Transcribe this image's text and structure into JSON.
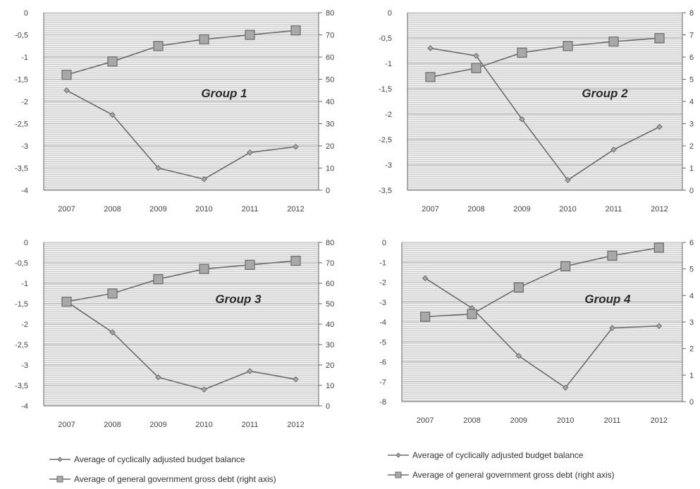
{
  "chart_data": [
    {
      "type": "line",
      "title": "Group 1",
      "categories": [
        "2007",
        "2008",
        "2009",
        "2010",
        "2011",
        "2012"
      ],
      "y_left_ticks": [
        "0",
        "-0,5",
        "-1",
        "-1,5",
        "-2",
        "-2,5",
        "-3",
        "-3,5",
        "-4"
      ],
      "y_left_range": [
        -4,
        0
      ],
      "y_right_ticks": [
        "80",
        "70",
        "60",
        "50",
        "40",
        "30",
        "20",
        "10",
        "0"
      ],
      "y_right_range": [
        0,
        80
      ],
      "series": [
        {
          "key": "balance",
          "axis": "left",
          "marker": "diamond",
          "values": [
            -1.75,
            -2.3,
            -3.5,
            -3.75,
            -3.15,
            -3.02
          ]
        },
        {
          "key": "debt",
          "axis": "right",
          "marker": "square",
          "values": [
            52,
            58,
            65,
            68,
            70,
            72
          ]
        }
      ]
    },
    {
      "type": "line",
      "title": "Group 2",
      "categories": [
        "2007",
        "2008",
        "2009",
        "2010",
        "2011",
        "2012"
      ],
      "y_left_ticks": [
        "0",
        "-0,5",
        "-1",
        "-1,5",
        "-2",
        "-2,5",
        "-3",
        "-3,5"
      ],
      "y_left_range": [
        -3.5,
        0
      ],
      "y_right_ticks": [
        "8",
        "7",
        "6",
        "5",
        "4",
        "3",
        "2",
        "1",
        "0"
      ],
      "y_right_range": [
        0,
        80
      ],
      "series": [
        {
          "key": "balance",
          "axis": "left",
          "marker": "diamond",
          "values": [
            -0.7,
            -0.85,
            -2.1,
            -3.3,
            -2.7,
            -2.25
          ]
        },
        {
          "key": "debt",
          "axis": "right",
          "marker": "square",
          "values": [
            51,
            55,
            62,
            65,
            67,
            68.5
          ]
        }
      ]
    },
    {
      "type": "line",
      "title": "Group 3",
      "categories": [
        "2007",
        "2008",
        "2009",
        "2010",
        "2011",
        "2012"
      ],
      "y_left_ticks": [
        "0",
        "-0,5",
        "-1",
        "-1,5",
        "-2",
        "-2,5",
        "-3",
        "-3,5",
        "-4"
      ],
      "y_left_range": [
        -4,
        0
      ],
      "y_right_ticks": [
        "80",
        "70",
        "60",
        "50",
        "40",
        "30",
        "20",
        "10",
        "0"
      ],
      "y_right_range": [
        0,
        80
      ],
      "series": [
        {
          "key": "balance",
          "axis": "left",
          "marker": "diamond",
          "values": [
            -1.45,
            -2.2,
            -3.3,
            -3.6,
            -3.15,
            -3.35
          ]
        },
        {
          "key": "debt",
          "axis": "right",
          "marker": "square",
          "values": [
            51,
            55,
            62,
            67,
            69,
            71
          ]
        }
      ]
    },
    {
      "type": "line",
      "title": "Group 4",
      "categories": [
        "2007",
        "2008",
        "2009",
        "2010",
        "2011",
        "2012"
      ],
      "y_left_ticks": [
        "0",
        "-1",
        "-2",
        "-3",
        "-4",
        "-5",
        "-6",
        "-7",
        "-8"
      ],
      "y_left_range": [
        -8,
        0
      ],
      "y_right_ticks": [
        "6",
        "5",
        "4",
        "3",
        "2",
        "1",
        "0"
      ],
      "y_right_range": [
        0,
        60
      ],
      "series": [
        {
          "key": "balance",
          "axis": "left",
          "marker": "diamond",
          "values": [
            -1.8,
            -3.3,
            -5.7,
            -7.3,
            -4.3,
            -4.2
          ]
        },
        {
          "key": "debt",
          "axis": "right",
          "marker": "square",
          "values": [
            32,
            33,
            43,
            51,
            55,
            58
          ]
        }
      ]
    }
  ],
  "legend": [
    {
      "key": "balance",
      "marker": "diamond",
      "label": "Average of cyclically adjusted budget balance"
    },
    {
      "key": "debt",
      "marker": "square",
      "label": "Average of general government gross debt (right axis)"
    }
  ],
  "colors": {
    "line": "#6b6b6b",
    "marker_fill": "#a8a8a8",
    "plot_bg": "#ececec",
    "stripe": "#c9c9c9",
    "axis": "#666666"
  }
}
